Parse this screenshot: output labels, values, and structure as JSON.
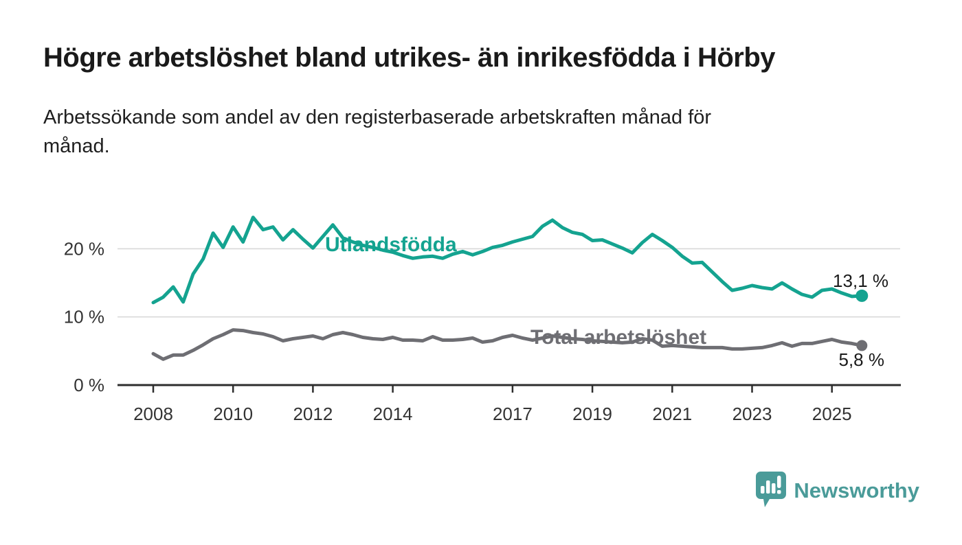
{
  "header": {
    "title": "Högre arbetslöshet bland utrikes- än inrikesfödda i Hörby",
    "subtitle": "Arbetssökande som andel av den registerbaserade arbetskraften månad för månad."
  },
  "chart_data": {
    "type": "line",
    "title": "Högre arbetslöshet bland utrikes- än inrikesfödda i Hörby",
    "subtitle": "Arbetssökande som andel av den registerbaserade arbetskraften månad för månad.",
    "grid": "horizontal",
    "legend": "inline-labels-on-lines",
    "xlim": [
      2007.1,
      2026.8
    ],
    "ylim": [
      0,
      26.5
    ],
    "x_ticks": [
      {
        "year": 2008,
        "label": "2008"
      },
      {
        "year": 2010,
        "label": "2010"
      },
      {
        "year": 2012,
        "label": "2012"
      },
      {
        "year": 2014,
        "label": "2014"
      },
      {
        "year": 2017,
        "label": "2017"
      },
      {
        "year": 2019,
        "label": "2019"
      },
      {
        "year": 2021,
        "label": "2021"
      },
      {
        "year": 2023,
        "label": "2023"
      },
      {
        "year": 2025,
        "label": "2025"
      }
    ],
    "y_ticks": [
      {
        "value": 0,
        "label": "0 %"
      },
      {
        "value": 10,
        "label": "10 %"
      },
      {
        "value": 20,
        "label": "20 %"
      }
    ],
    "x": [
      2008,
      2008.25,
      2008.5,
      2008.75,
      2009,
      2009.25,
      2009.5,
      2009.75,
      2010,
      2010.25,
      2010.5,
      2010.75,
      2011,
      2011.25,
      2011.5,
      2011.75,
      2012,
      2012.25,
      2012.5,
      2012.75,
      2013,
      2013.25,
      2013.5,
      2013.75,
      2014,
      2014.25,
      2014.5,
      2014.75,
      2015,
      2015.25,
      2015.5,
      2015.75,
      2016,
      2016.25,
      2016.5,
      2016.75,
      2017,
      2017.25,
      2017.5,
      2017.75,
      2018,
      2018.25,
      2018.5,
      2018.75,
      2019,
      2019.25,
      2019.5,
      2019.75,
      2020,
      2020.25,
      2020.5,
      2020.75,
      2021,
      2021.25,
      2021.5,
      2021.75,
      2022,
      2022.25,
      2022.5,
      2022.75,
      2023,
      2023.25,
      2023.5,
      2023.75,
      2024,
      2024.25,
      2024.5,
      2024.75,
      2025,
      2025.25,
      2025.5,
      2025.75
    ],
    "series": [
      {
        "name": "Utlandsfödda",
        "color": "#14a390",
        "end_value": 13.1,
        "end_label": "13,1 %",
        "values": [
          12.1,
          12.9,
          14.4,
          12.2,
          16.3,
          18.5,
          22.3,
          20.2,
          23.2,
          21.0,
          24.6,
          22.8,
          23.2,
          21.3,
          22.8,
          21.4,
          20.1,
          21.8,
          23.5,
          21.6,
          21.0,
          20.5,
          20.2,
          19.8,
          19.5,
          19.0,
          18.6,
          18.8,
          18.9,
          18.6,
          19.2,
          19.6,
          19.1,
          19.6,
          20.2,
          20.5,
          21.0,
          21.4,
          21.8,
          23.3,
          24.2,
          23.1,
          22.4,
          22.1,
          21.2,
          21.3,
          20.7,
          20.1,
          19.4,
          20.9,
          22.1,
          21.2,
          20.2,
          18.9,
          17.9,
          18.0,
          16.6,
          15.2,
          13.9,
          14.2,
          14.6,
          14.3,
          14.1,
          15.0,
          14.1,
          13.3,
          12.9,
          13.9,
          14.1,
          13.5,
          13.0,
          13.1
        ]
      },
      {
        "name": "Total arbetslöshet",
        "color": "#6e6e73",
        "end_value": 5.8,
        "end_label": "5,8 %",
        "values": [
          4.6,
          3.8,
          4.4,
          4.4,
          5.1,
          5.9,
          6.8,
          7.4,
          8.1,
          8.0,
          7.7,
          7.5,
          7.1,
          6.5,
          6.8,
          7.0,
          7.2,
          6.8,
          7.4,
          7.7,
          7.4,
          7.0,
          6.8,
          6.7,
          7.0,
          6.6,
          6.6,
          6.5,
          7.1,
          6.6,
          6.6,
          6.7,
          6.9,
          6.3,
          6.5,
          7.0,
          7.3,
          6.9,
          6.6,
          6.9,
          7.2,
          7.0,
          6.8,
          6.7,
          6.5,
          6.4,
          6.3,
          6.2,
          6.3,
          6.8,
          6.6,
          5.7,
          5.8,
          5.7,
          5.6,
          5.5,
          5.5,
          5.5,
          5.3,
          5.3,
          5.4,
          5.5,
          5.8,
          6.2,
          5.7,
          6.1,
          6.1,
          6.4,
          6.7,
          6.3,
          6.1,
          5.8
        ]
      }
    ]
  },
  "footer": {
    "brand": "Newsworthy"
  },
  "colors": {
    "accent_teal": "#14a390",
    "gray_series": "#6e6e73",
    "logo_teal": "#4a9b99",
    "grid": "#d8d8d8",
    "axis": "#2e2e2e",
    "text": "#1a1a1a"
  }
}
